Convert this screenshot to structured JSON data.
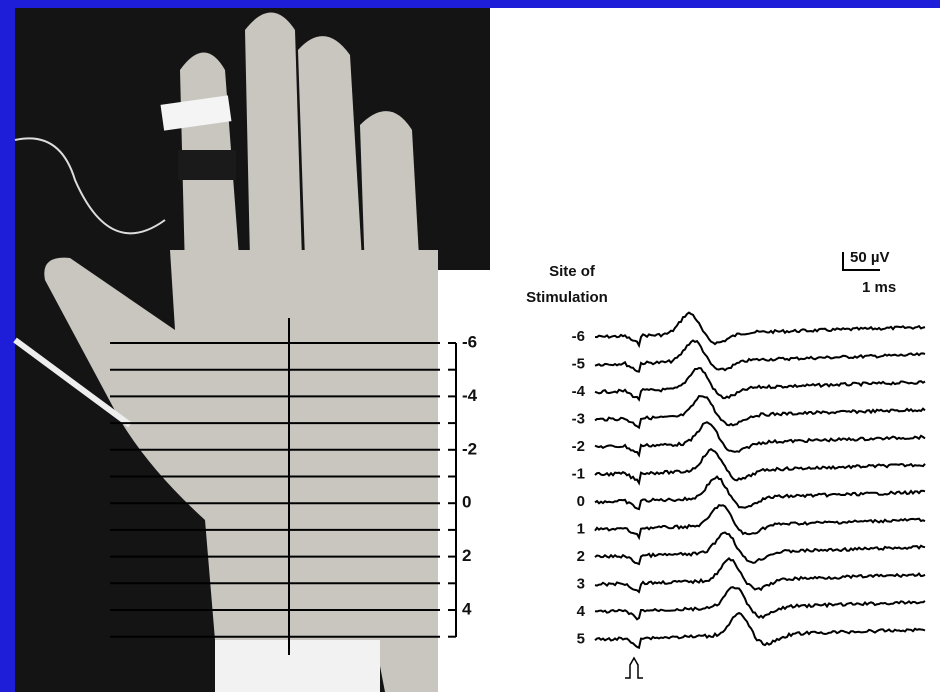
{
  "scale_bar": {
    "amplitude": "50 µV",
    "time": "1 ms"
  },
  "axis_title": [
    "Site of",
    "Stimulation"
  ],
  "ruler_labels": [
    "-6",
    "-4",
    "-2",
    "0",
    "2",
    "4"
  ],
  "trace_labels": [
    "-6",
    "-5",
    "-4",
    "-3",
    "-2",
    "-1",
    "0",
    "1",
    "2",
    "3",
    "4",
    "5"
  ]
}
